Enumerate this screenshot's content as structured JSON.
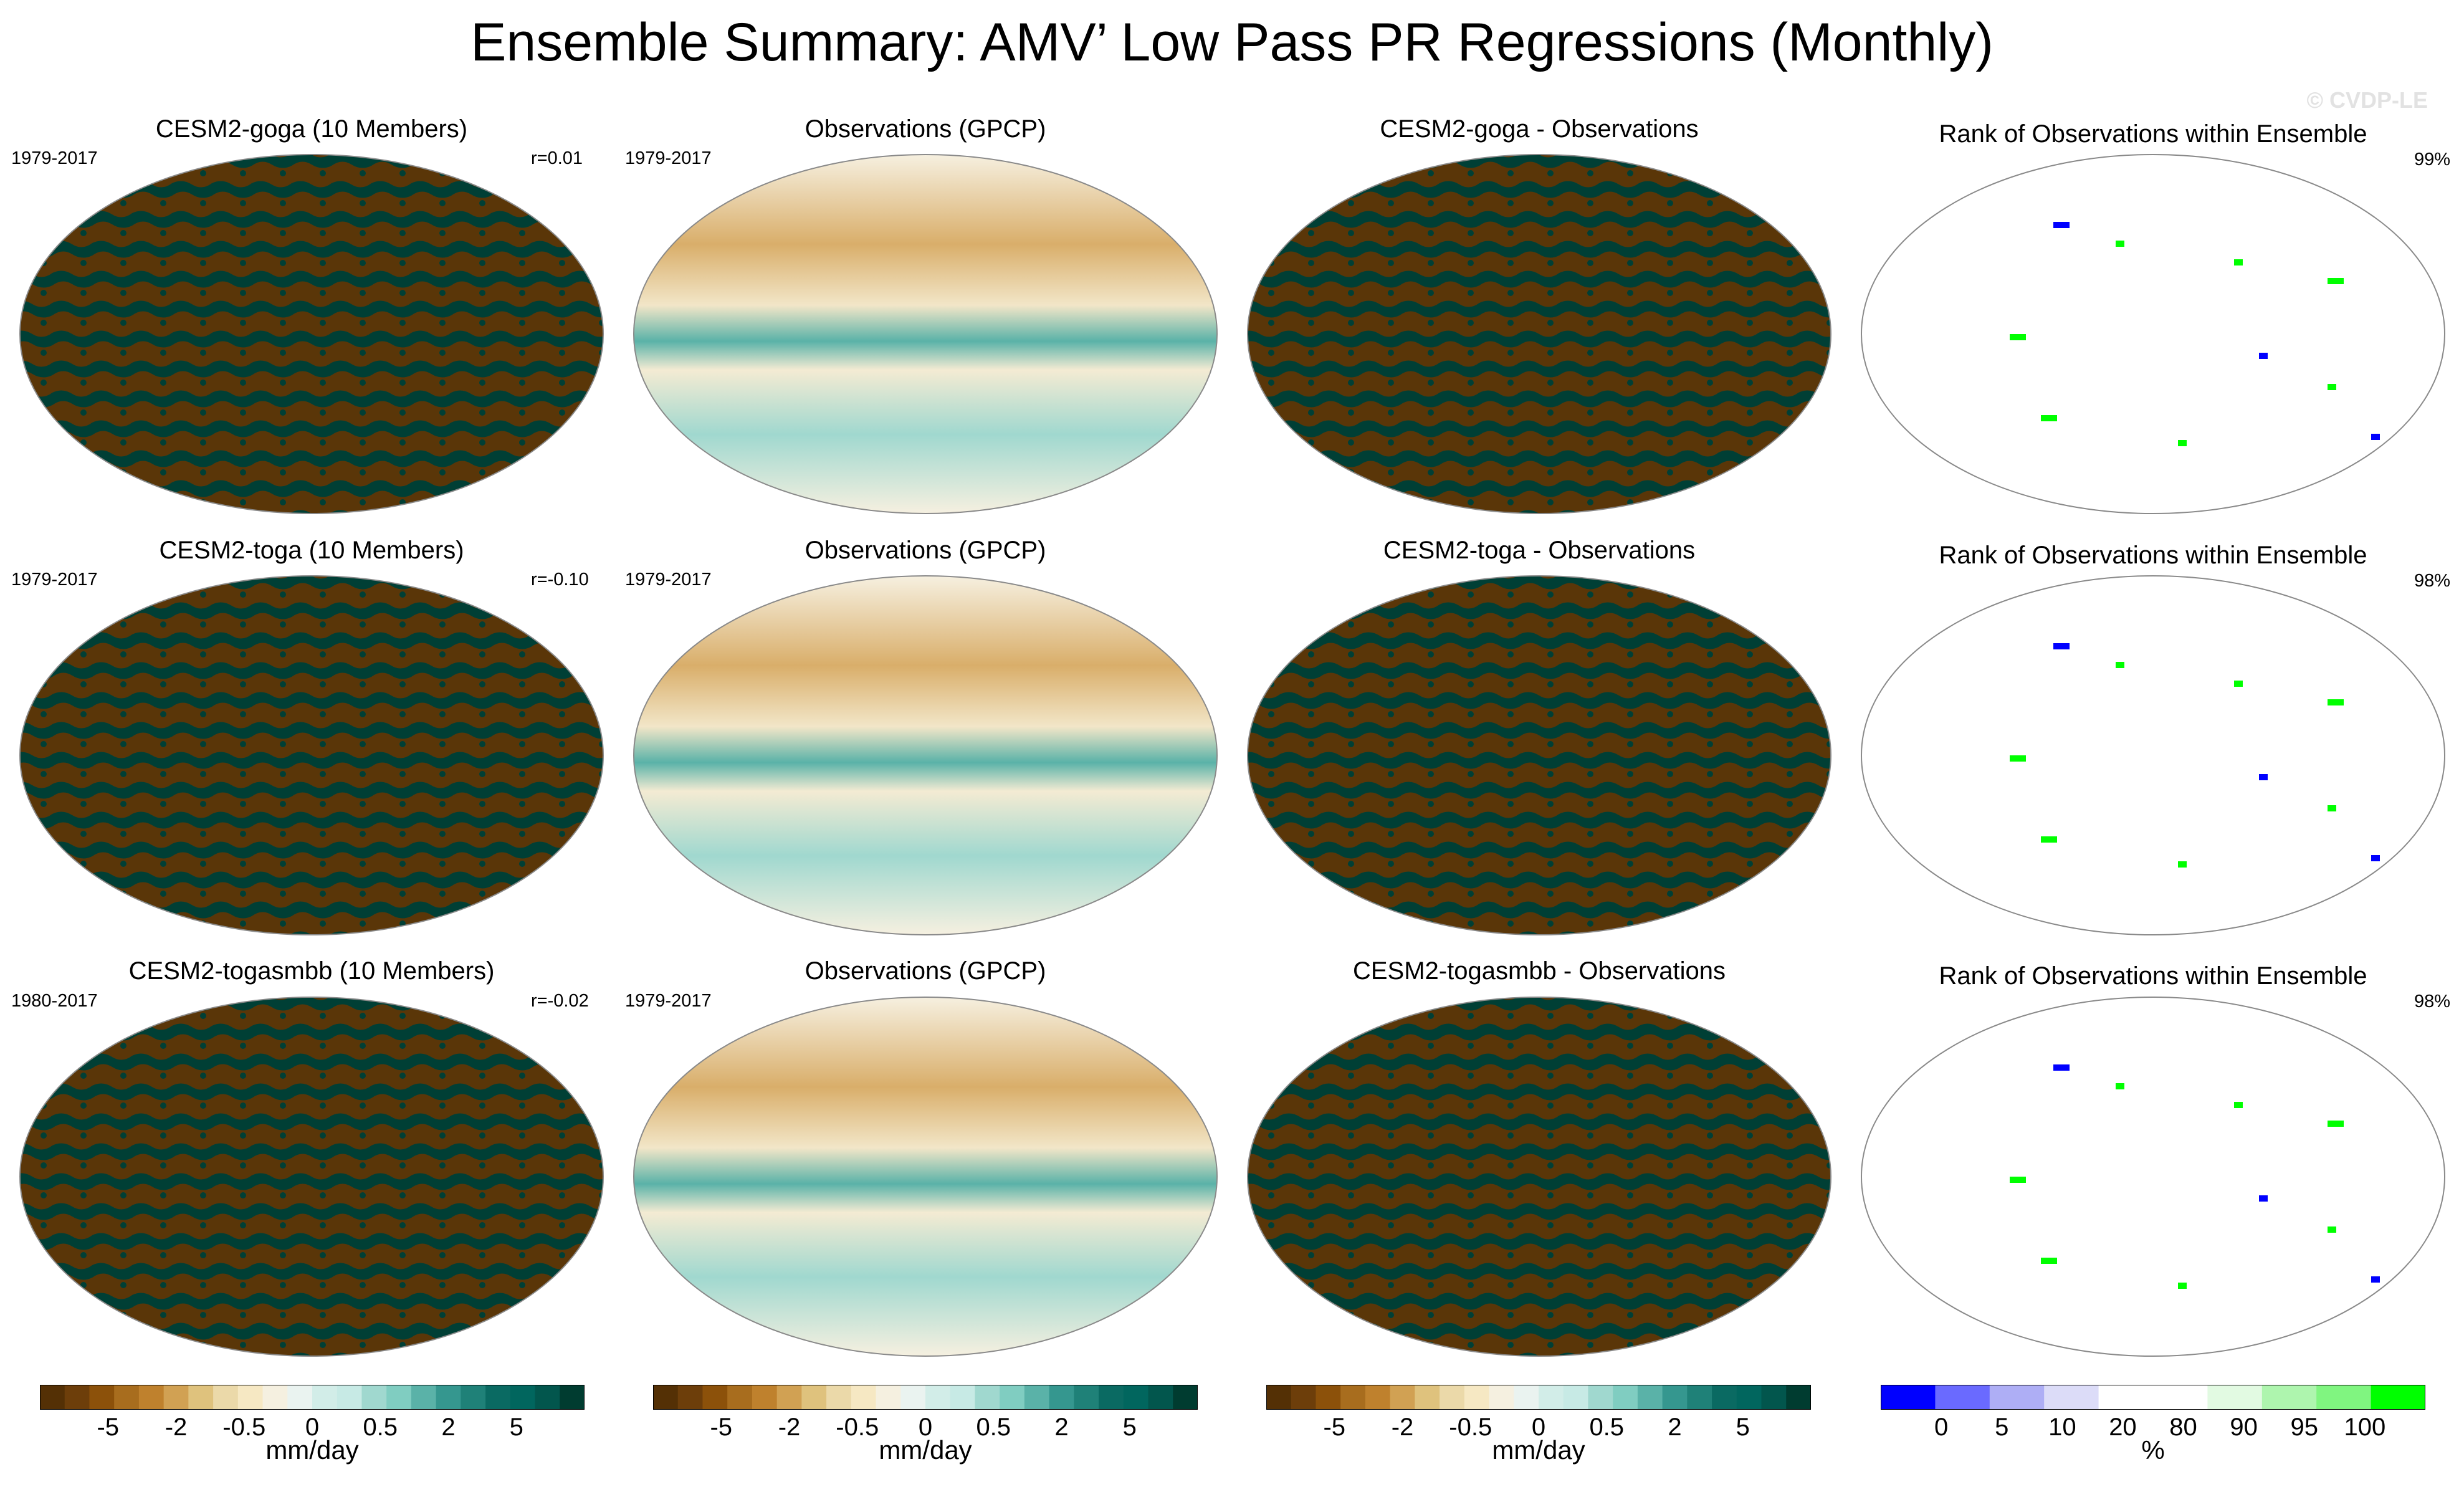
{
  "figure": {
    "title": "Ensemble Summary: AMV’ Low Pass PR Regressions (Monthly)",
    "watermark": "© CVDP-LE"
  },
  "colors": {
    "brown_dark": "#5a3608",
    "teal_dark": "#003f35",
    "cream": "#f4ebd3",
    "land_outline": "#8a8a8a",
    "rank_blue": "#0000ff",
    "rank_green": "#00ff00"
  },
  "rows": [
    {
      "model_title": "CESM2-goga (10 Members)",
      "model_years": "1979-2017",
      "correlation": "r=0.01",
      "obs_title": "Observations (GPCP)",
      "obs_years": "1979-2017",
      "diff_title": "CESM2-goga - Observations",
      "rank_title": "Rank of Observations within Ensemble",
      "rank_pct": "99%"
    },
    {
      "model_title": "CESM2-toga (10 Members)",
      "model_years": "1979-2017",
      "correlation": "r=-0.10",
      "obs_title": "Observations (GPCP)",
      "obs_years": "1979-2017",
      "diff_title": "CESM2-toga - Observations",
      "rank_title": "Rank of Observations within Ensemble",
      "rank_pct": "98%"
    },
    {
      "model_title": "CESM2-togasmbb (10 Members)",
      "model_years": "1980-2017",
      "correlation": "r=-0.02",
      "obs_title": "Observations (GPCP)",
      "obs_years": "1979-2017",
      "diff_title": "CESM2-togasmbb - Observations",
      "rank_title": "Rank of Observations within Ensemble",
      "rank_pct": "98%"
    }
  ],
  "chart_data": [
    {
      "type": "colorbar",
      "name": "regression colorbar",
      "unit": "mm/day",
      "colors": [
        "#543005",
        "#6d3e0a",
        "#8c510a",
        "#a86d1e",
        "#bf812d",
        "#d1a153",
        "#dfc27d",
        "#ebd9a9",
        "#f6e8c3",
        "#f5f0e0",
        "#eaf3f0",
        "#d2ede8",
        "#c7eae5",
        "#a0d8cf",
        "#80cdc1",
        "#5ab2a8",
        "#35978f",
        "#1f8178",
        "#0a6a62",
        "#01665e",
        "#02564d",
        "#003c30"
      ],
      "tick_labels": [
        "-5",
        "-2",
        "-0.5",
        "0",
        "0.5",
        "2",
        "5"
      ]
    },
    {
      "type": "colorbar",
      "name": "rank colorbar",
      "unit": "%",
      "colors": [
        "#0000ff",
        "#6a6aff",
        "#aeaef5",
        "#dcdcf8",
        "#ffffff",
        "#ffffff",
        "#e2fae2",
        "#aef5ae",
        "#80f580",
        "#00ff00"
      ],
      "tick_labels": [
        "0",
        "5",
        "10",
        "20",
        "80",
        "90",
        "95",
        "100"
      ]
    }
  ]
}
